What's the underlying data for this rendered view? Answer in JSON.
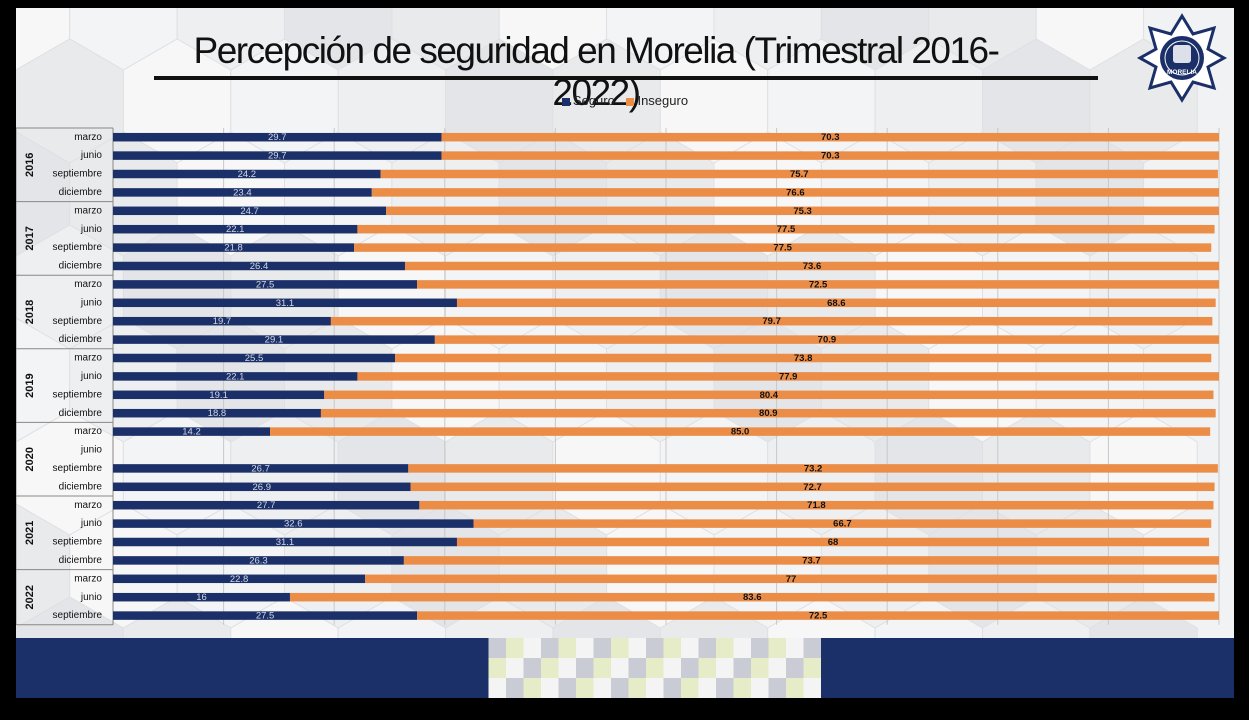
{
  "title": "Percepción de seguridad en Morelia (Trimestral 2016-2022)",
  "logo_text": "MORELIA",
  "colors": {
    "seguro": "#1b2f68",
    "inseguro": "#ec8d47",
    "grid": "#c8c8c8",
    "text": "#111111"
  },
  "chart_data": {
    "type": "bar",
    "orientation": "horizontal",
    "stacked": true,
    "grid": true,
    "legend_position": "top",
    "xlim": [
      0,
      100
    ],
    "years": [
      {
        "label": "2016",
        "quarters": [
          "marzo",
          "junio",
          "septiembre",
          "diciembre"
        ]
      },
      {
        "label": "2017",
        "quarters": [
          "marzo",
          "junio",
          "septiembre",
          "diciembre"
        ]
      },
      {
        "label": "2018",
        "quarters": [
          "marzo",
          "junio",
          "septiembre",
          "diciembre"
        ]
      },
      {
        "label": "2019",
        "quarters": [
          "marzo",
          "junio",
          "septiembre",
          "diciembre"
        ]
      },
      {
        "label": "2020",
        "quarters": [
          "marzo",
          "junio",
          "septiembre",
          "diciembre"
        ]
      },
      {
        "label": "2021",
        "quarters": [
          "marzo",
          "junio",
          "septiembre",
          "diciembre"
        ]
      },
      {
        "label": "2022",
        "quarters": [
          "marzo",
          "junio",
          "septiembre"
        ]
      }
    ],
    "series": [
      {
        "name": "Seguro",
        "color": "#1b2f68",
        "values": [
          29.7,
          29.7,
          24.2,
          23.4,
          24.7,
          22.1,
          21.8,
          26.4,
          27.5,
          31.1,
          19.7,
          29.1,
          25.5,
          22.1,
          19.1,
          18.8,
          14.2,
          null,
          26.7,
          26.9,
          27.7,
          32.6,
          31.1,
          26.3,
          22.8,
          16,
          27.5
        ],
        "labels": [
          "29.7",
          "29.7",
          "24.2",
          "23.4",
          "24.7",
          "22.1",
          "21.8",
          "26.4",
          "27.5",
          "31.1",
          "19.7",
          "29.1",
          "25.5",
          "22.1",
          "19.1",
          "18.8",
          "14.2",
          "",
          "26.7",
          "26.9",
          "27.7",
          "32.6",
          "31.1",
          "26.3",
          "22.8",
          "16",
          "27.5"
        ]
      },
      {
        "name": "Inseguro",
        "color": "#ec8d47",
        "values": [
          70.3,
          70.3,
          75.7,
          76.6,
          75.3,
          77.5,
          77.5,
          73.6,
          72.5,
          68.6,
          79.7,
          70.9,
          73.8,
          77.9,
          80.4,
          80.9,
          85.0,
          null,
          73.2,
          72.7,
          71.8,
          66.7,
          68,
          73.7,
          77,
          83.6,
          72.5
        ],
        "labels": [
          "70.3",
          "70.3",
          "75.7",
          "76.6",
          "75.3",
          "77.5",
          "77.5",
          "73.6",
          "72.5",
          "68.6",
          "79.7",
          "70.9",
          "73.8",
          "77.9",
          "80.4",
          "80.9",
          "85.0",
          "",
          "73.2",
          "72.7",
          "71.8",
          "66.7",
          "68",
          "73.7",
          "77",
          "83.6",
          "72.5"
        ]
      }
    ]
  }
}
